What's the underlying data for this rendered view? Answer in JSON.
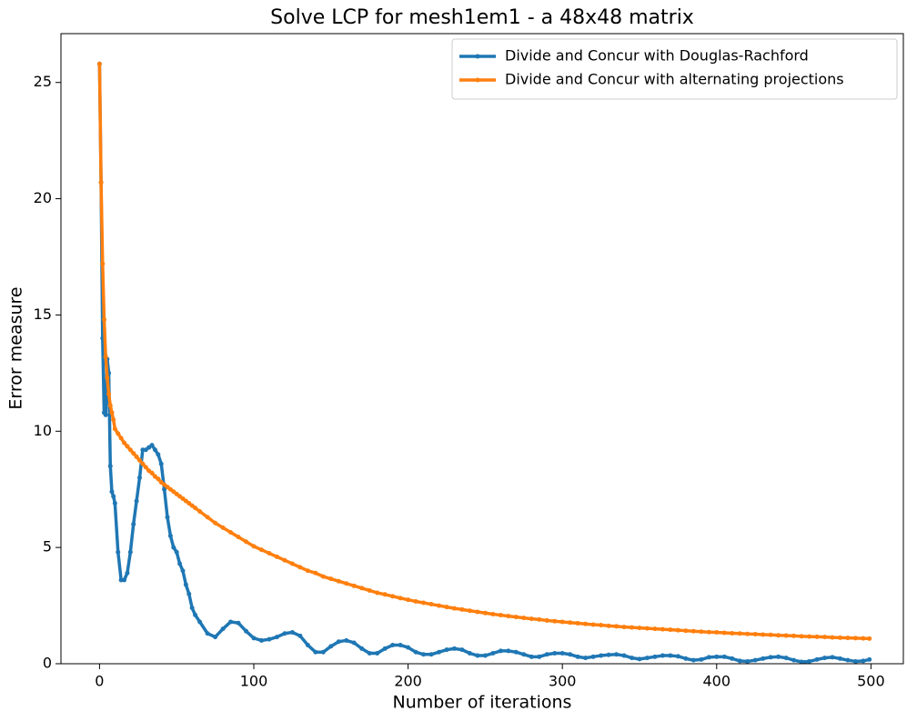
{
  "chart_data": {
    "type": "line",
    "title": "Solve LCP for mesh1em1 - a 48x48 matrix",
    "xlabel": "Number of iterations",
    "ylabel": "Error measure",
    "xlim": [
      -25,
      521
    ],
    "ylim": [
      0,
      27.1
    ],
    "xticks": [
      0,
      100,
      200,
      300,
      400,
      500
    ],
    "yticks": [
      0,
      5,
      10,
      15,
      20,
      25
    ],
    "legend": "upper right",
    "x": [
      0,
      1,
      2,
      3,
      4,
      5,
      6,
      7,
      8,
      9,
      10,
      12,
      14,
      16,
      18,
      20,
      22,
      24,
      26,
      28,
      30,
      32,
      34,
      36,
      38,
      40,
      42,
      44,
      46,
      48,
      50,
      52,
      54,
      56,
      58,
      60,
      62,
      65,
      70,
      75,
      80,
      85,
      90,
      95,
      100,
      105,
      110,
      115,
      120,
      125,
      130,
      135,
      140,
      145,
      150,
      155,
      160,
      165,
      170,
      175,
      180,
      185,
      190,
      195,
      200,
      205,
      210,
      215,
      220,
      225,
      230,
      235,
      240,
      245,
      250,
      255,
      260,
      265,
      270,
      275,
      280,
      285,
      290,
      295,
      300,
      305,
      310,
      315,
      320,
      325,
      330,
      335,
      340,
      345,
      350,
      355,
      360,
      365,
      370,
      375,
      380,
      385,
      390,
      395,
      400,
      405,
      410,
      415,
      420,
      425,
      430,
      435,
      440,
      445,
      450,
      455,
      460,
      465,
      470,
      475,
      480,
      485,
      490,
      495,
      499
    ],
    "series": [
      {
        "name": "Divide and Concur with Douglas-Rachford",
        "color": "#1f77b4",
        "values": [
          25.8,
          20.7,
          14.0,
          10.8,
          10.7,
          13.1,
          12.5,
          8.5,
          7.4,
          7.2,
          6.9,
          4.8,
          3.6,
          3.6,
          3.9,
          4.8,
          6.0,
          7.0,
          8.0,
          9.2,
          9.2,
          9.3,
          9.4,
          9.2,
          9.0,
          8.6,
          7.5,
          6.3,
          5.5,
          5.0,
          4.8,
          4.3,
          4.0,
          3.4,
          3.0,
          2.4,
          2.1,
          1.8,
          1.3,
          1.15,
          1.5,
          1.8,
          1.75,
          1.4,
          1.1,
          1.0,
          1.05,
          1.15,
          1.3,
          1.35,
          1.2,
          0.8,
          0.5,
          0.5,
          0.75,
          0.95,
          1.0,
          0.9,
          0.65,
          0.45,
          0.45,
          0.65,
          0.8,
          0.8,
          0.7,
          0.5,
          0.4,
          0.4,
          0.5,
          0.6,
          0.65,
          0.6,
          0.45,
          0.35,
          0.35,
          0.45,
          0.55,
          0.55,
          0.5,
          0.4,
          0.3,
          0.3,
          0.4,
          0.45,
          0.45,
          0.4,
          0.3,
          0.25,
          0.3,
          0.35,
          0.38,
          0.4,
          0.35,
          0.25,
          0.2,
          0.25,
          0.3,
          0.35,
          0.35,
          0.32,
          0.22,
          0.15,
          0.18,
          0.28,
          0.3,
          0.3,
          0.22,
          0.12,
          0.1,
          0.15,
          0.22,
          0.28,
          0.3,
          0.25,
          0.15,
          0.08,
          0.1,
          0.18,
          0.25,
          0.28,
          0.22,
          0.15,
          0.1,
          0.12,
          0.18
        ]
      },
      {
        "name": "Divide and Concur with alternating projections",
        "color": "#ff7f0e",
        "values": [
          25.8,
          20.7,
          17.2,
          14.8,
          13.2,
          12.3,
          11.6,
          11.1,
          10.8,
          10.5,
          10.1,
          9.9,
          9.7,
          9.5,
          9.35,
          9.2,
          9.05,
          8.9,
          8.75,
          8.6,
          8.45,
          8.3,
          8.2,
          8.05,
          7.95,
          7.8,
          7.7,
          7.6,
          7.5,
          7.4,
          7.3,
          7.2,
          7.1,
          7.0,
          6.9,
          6.8,
          6.7,
          6.55,
          6.3,
          6.05,
          5.85,
          5.65,
          5.45,
          5.25,
          5.05,
          4.9,
          4.75,
          4.6,
          4.45,
          4.3,
          4.15,
          4.0,
          3.9,
          3.75,
          3.65,
          3.55,
          3.45,
          3.35,
          3.25,
          3.15,
          3.05,
          2.98,
          2.9,
          2.82,
          2.75,
          2.68,
          2.62,
          2.56,
          2.5,
          2.44,
          2.38,
          2.33,
          2.28,
          2.23,
          2.18,
          2.13,
          2.09,
          2.05,
          2.01,
          1.97,
          1.93,
          1.9,
          1.86,
          1.83,
          1.8,
          1.77,
          1.74,
          1.71,
          1.68,
          1.66,
          1.63,
          1.61,
          1.58,
          1.56,
          1.54,
          1.52,
          1.5,
          1.48,
          1.46,
          1.44,
          1.42,
          1.4,
          1.38,
          1.36,
          1.35,
          1.33,
          1.31,
          1.3,
          1.28,
          1.27,
          1.25,
          1.24,
          1.22,
          1.21,
          1.2,
          1.18,
          1.17,
          1.16,
          1.15,
          1.13,
          1.12,
          1.11,
          1.1,
          1.09,
          1.08
        ]
      }
    ]
  }
}
